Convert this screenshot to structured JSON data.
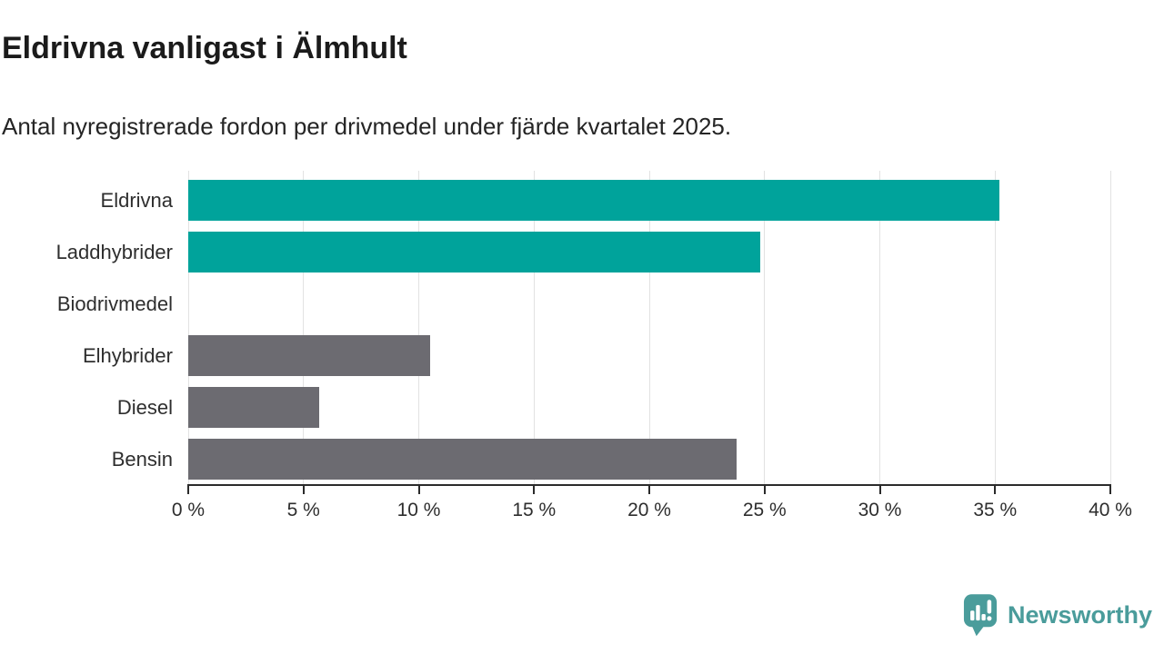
{
  "header": {
    "title": "Eldrivna vanligast i Älmhult",
    "subtitle": "Antal nyregistrerade fordon per drivmedel under fjärde kvartalet 2025."
  },
  "chart_data": {
    "type": "bar",
    "orientation": "horizontal",
    "title": "Eldrivna vanligast i Älmhult",
    "subtitle": "Antal nyregistrerade fordon per drivmedel under fjärde kvartalet 2025.",
    "categories": [
      "Eldrivna",
      "Laddhybrider",
      "Biodrivmedel",
      "Elhybrider",
      "Diesel",
      "Bensin"
    ],
    "values": [
      35.2,
      24.8,
      0,
      10.5,
      5.7,
      23.8
    ],
    "unit": "%",
    "bar_colors": [
      "#00a39b",
      "#00a39b",
      "#6c6b71",
      "#6c6b71",
      "#6c6b71",
      "#6c6b71"
    ],
    "xlim": [
      0,
      40
    ],
    "x_ticks": [
      0,
      5,
      10,
      15,
      20,
      25,
      30,
      35,
      40
    ],
    "x_tick_labels": [
      "0 %",
      "5 %",
      "10 %",
      "15 %",
      "20 %",
      "25 %",
      "30 %",
      "35 %",
      "40 %"
    ],
    "grid": "vertical-on",
    "legend": "none",
    "xlabel": "",
    "ylabel": ""
  },
  "footer": {
    "brand": "Newsworthy",
    "brand_color": "#4a9c9b",
    "logo_icon": "newsworthy-speech-bubble-barchart-icon"
  },
  "colors": {
    "background": "#ffffff",
    "teal_accent": "#00a39b",
    "gray_bar": "#6c6b71",
    "gridline": "#e2e2e2",
    "axis": "#2b2b2b",
    "text": "#2e2e2e",
    "title_text": "#1b1b1b",
    "logo_teal": "#4a9c9b"
  }
}
